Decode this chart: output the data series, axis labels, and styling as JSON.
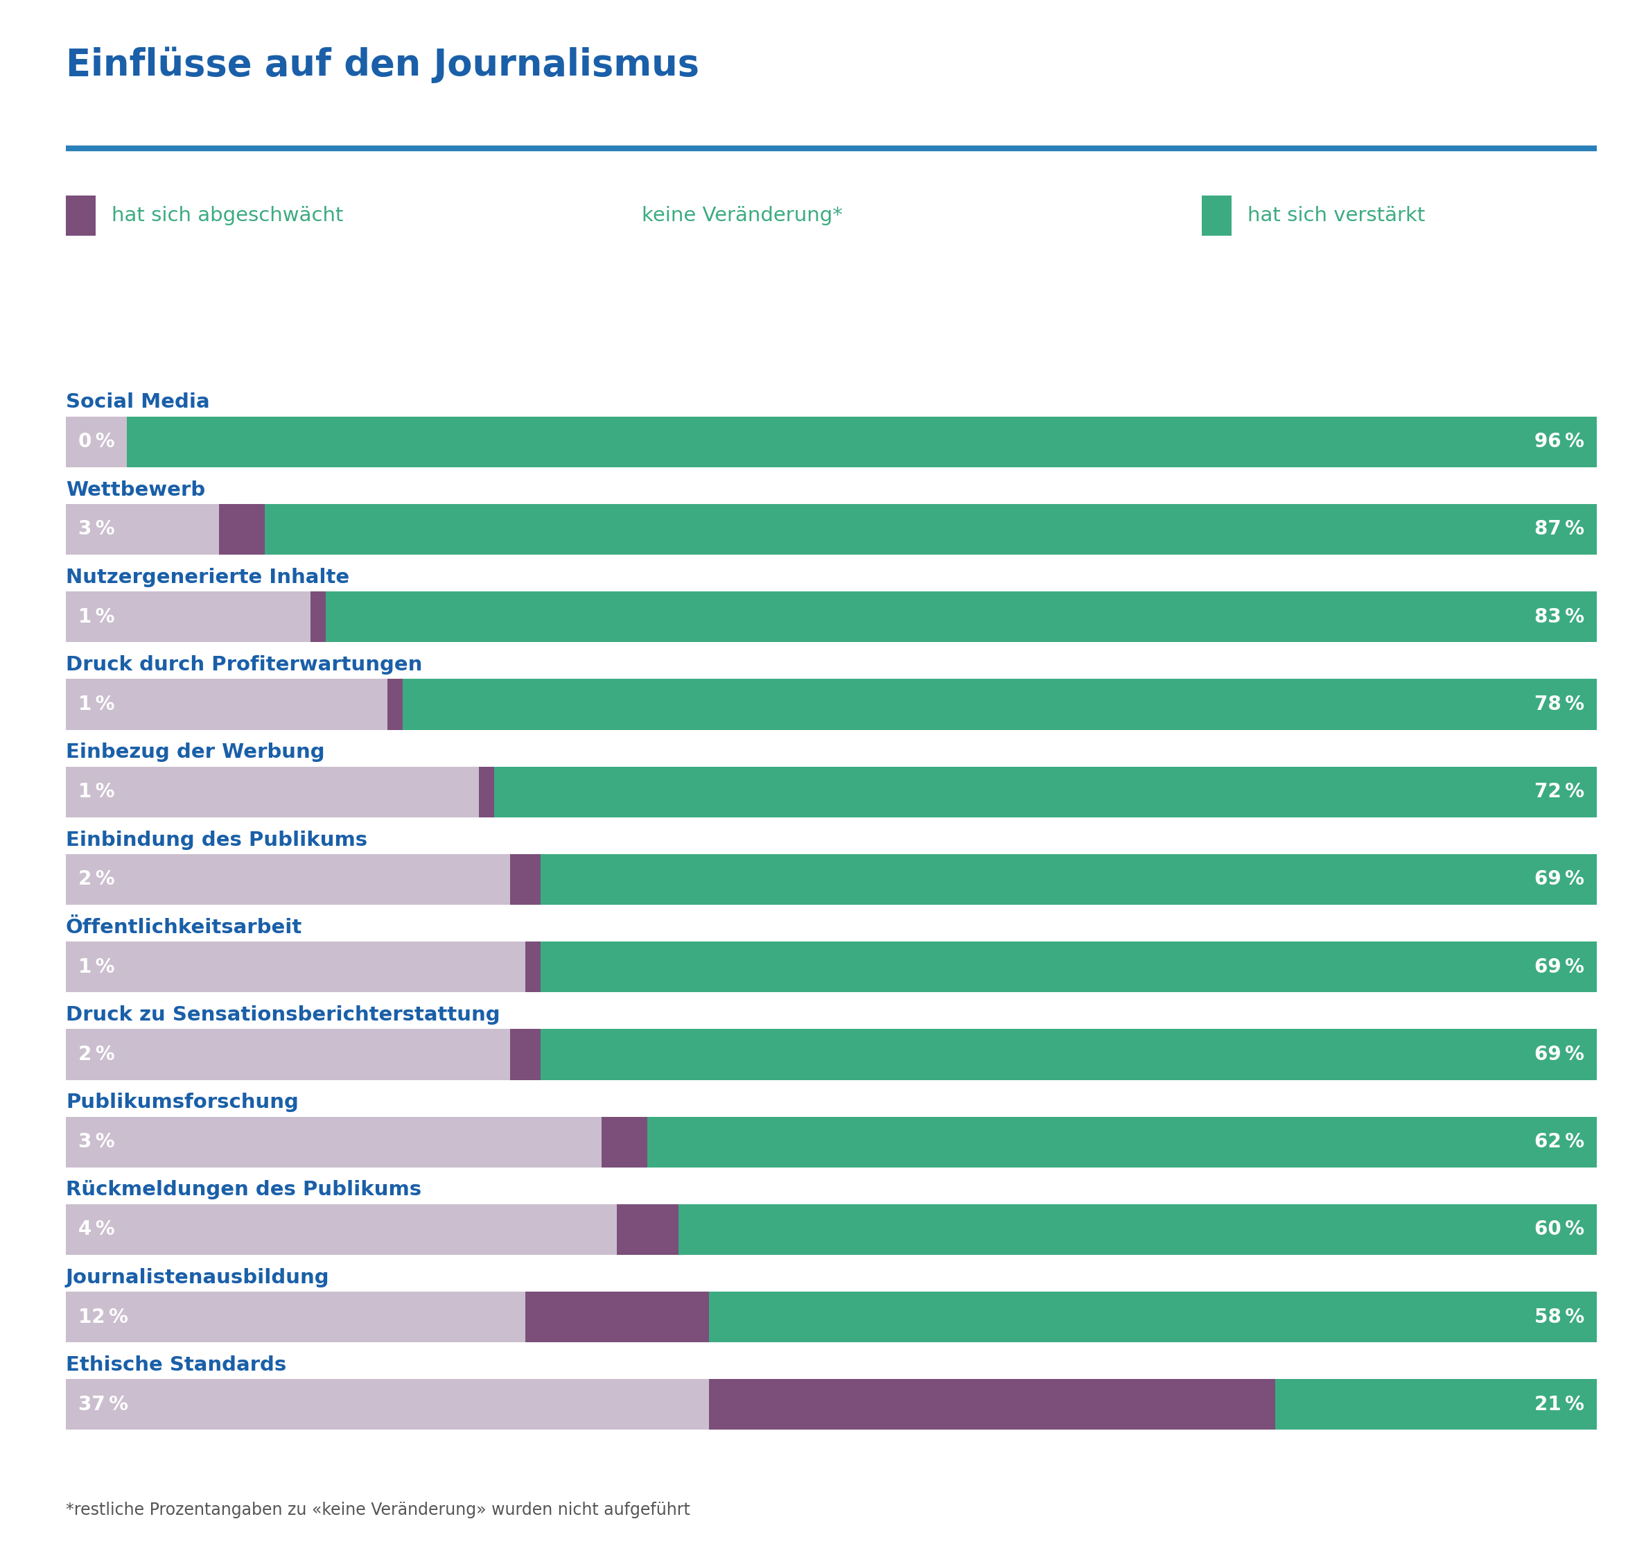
{
  "title": "Einflüsse auf den Journalismus",
  "title_color": "#1a5fa8",
  "top_line_color": "#2980b9",
  "legend_ab_label": "hat sich abgeschwächt",
  "legend_keine_label": "keine Veränderung*",
  "legend_ver_label": "hat sich verstärkt",
  "ab_color": "#7b4f7a",
  "keine_color": "#cbbece",
  "ver_color": "#3dab82",
  "ver_light_color": "#a8d5c2",
  "label_color": "#1a5fa8",
  "legend_text_color": "#3dab82",
  "white_text": "#ffffff",
  "footnote_color": "#555555",
  "categories": [
    "Social Media",
    "Wettbewerb",
    "Nutzergenerierte Inhalte",
    "Druck durch Profiterwartungen",
    "Einbezug der Werbung",
    "Einbindung des Publikums",
    "Öffentlichkeitsarbeit",
    "Druck zu Sensationsberichterstattung",
    "Publikumsforschung",
    "Rückmeldungen des Publikums",
    "Journalistenausbildung",
    "Ethische Standards"
  ],
  "abgeschwaecht": [
    0,
    3,
    1,
    1,
    1,
    2,
    1,
    2,
    3,
    4,
    12,
    37
  ],
  "verstaerkt": [
    96,
    87,
    83,
    78,
    72,
    69,
    69,
    69,
    62,
    60,
    58,
    21
  ],
  "footnote": "*restliche Prozentangaben zu «keine Veränderung» wurden nicht aufgeführt",
  "bg_color": "#ffffff",
  "bar_height": 0.58,
  "title_fontsize": 38,
  "cat_fontsize": 21,
  "bar_fontsize": 20,
  "legend_fontsize": 21,
  "footnote_fontsize": 17
}
